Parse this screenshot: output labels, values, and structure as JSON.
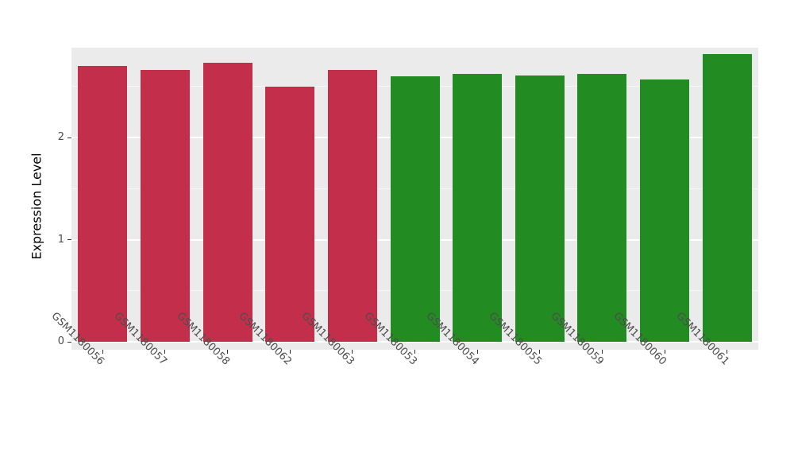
{
  "chart_data": {
    "type": "bar",
    "title": "",
    "xlabel": "",
    "ylabel": "Expression Level",
    "categories": [
      "GSM1180056",
      "GSM1180057",
      "GSM1180058",
      "GSM1180062",
      "GSM1180063",
      "GSM1180053",
      "GSM1180054",
      "GSM1180055",
      "GSM1180059",
      "GSM1180060",
      "GSM1180061"
    ],
    "values": [
      2.7,
      2.66,
      2.73,
      2.5,
      2.66,
      2.6,
      2.62,
      2.61,
      2.62,
      2.57,
      2.82
    ],
    "bar_colors": [
      "#C32F4B",
      "#C32F4B",
      "#C32F4B",
      "#C32F4B",
      "#C32F4B",
      "#228B22",
      "#228B22",
      "#228B22",
      "#228B22",
      "#228B22",
      "#228B22"
    ],
    "group_colors": {
      "red": "#C32F4B",
      "green": "#228B22"
    },
    "ylim": [
      0,
      2.95
    ],
    "yticks": [
      0,
      1,
      2
    ],
    "ytick_labels": [
      "0",
      "1",
      "2"
    ],
    "y_minor": [
      0.5,
      1.5,
      2.5
    ],
    "grid": "on",
    "legend_position": "none",
    "panel_background": "#EBEBEB",
    "gridline_color": "#FFFFFF"
  }
}
